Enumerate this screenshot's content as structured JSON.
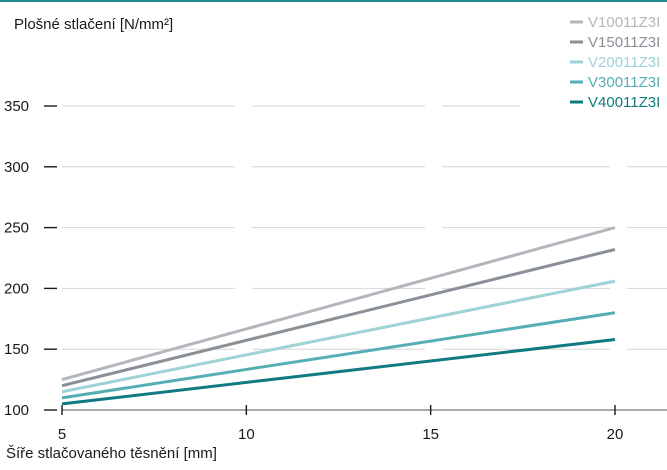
{
  "chart_data": {
    "type": "line",
    "ylabel": "Plošné stlačení [N/mm²]",
    "xlabel": "Šíře stlačovaného těsnění [mm]",
    "x": [
      5,
      20
    ],
    "xticks": [
      5,
      10,
      15,
      20
    ],
    "yticks": [
      100,
      150,
      200,
      250,
      300,
      350
    ],
    "xlim": [
      5,
      20
    ],
    "ylim": [
      100,
      350
    ],
    "grid": "horizontal",
    "legend_position": "top-right",
    "series": [
      {
        "name": "V10011Z3I",
        "color": "#b3b7bd",
        "values": [
          125,
          250
        ]
      },
      {
        "name": "V15011Z3I",
        "color": "#8a9098",
        "values": [
          120,
          232
        ]
      },
      {
        "name": "V20011Z3I",
        "color": "#9dd3d6",
        "values": [
          115,
          206
        ]
      },
      {
        "name": "V30011Z3I",
        "color": "#54aeb3",
        "values": [
          110,
          180
        ]
      },
      {
        "name": "V40011Z3I",
        "color": "#0f7a80",
        "values": [
          105,
          158
        ]
      }
    ]
  },
  "colors": {
    "accent": "#1f8a91",
    "grid": "#d6d6d6",
    "axis_text": "#1a1a1a"
  }
}
